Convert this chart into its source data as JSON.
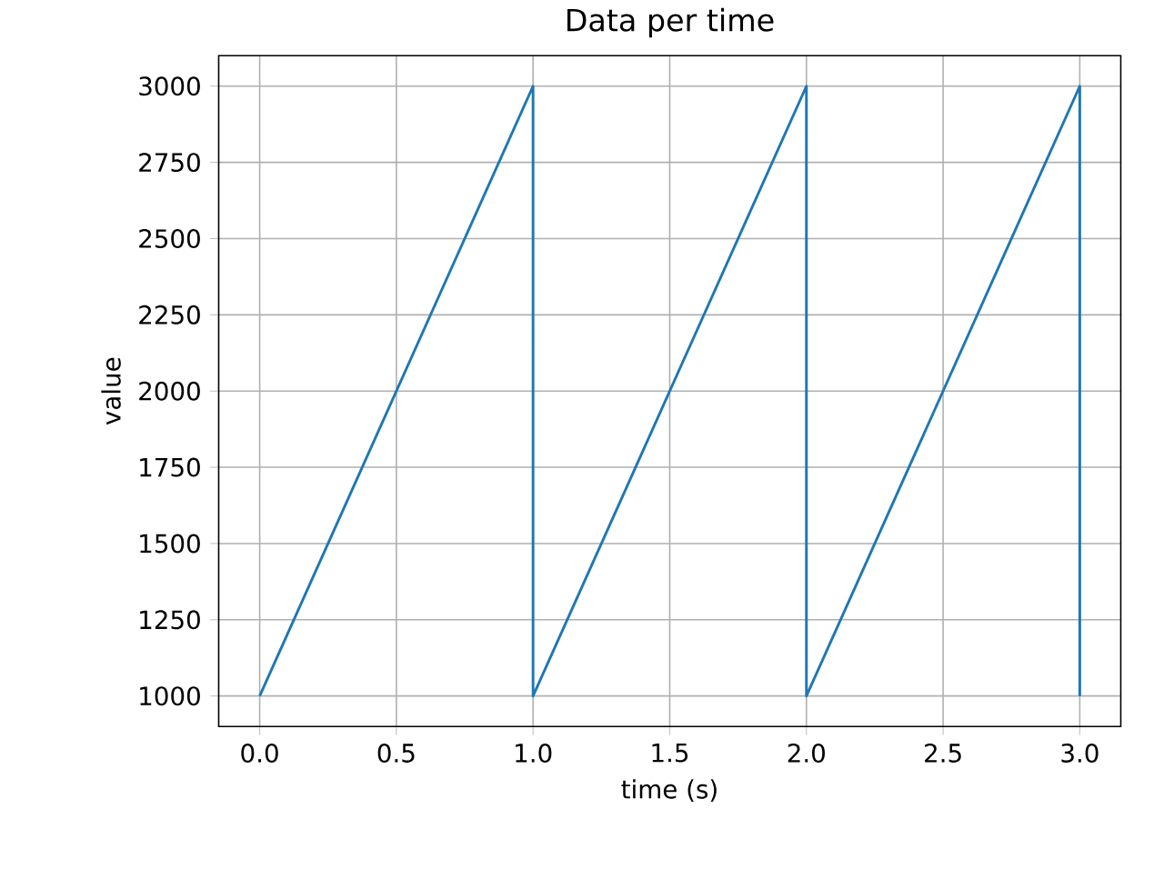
{
  "chart_data": {
    "type": "line",
    "title": "Data per time",
    "xlabel": "time (s)",
    "ylabel": "value",
    "x": [
      0,
      1,
      1,
      2,
      2,
      3,
      3
    ],
    "series": [
      {
        "color": "#1f77b4",
        "values": [
          1000,
          3000,
          1000,
          3000,
          1000,
          3000,
          1000
        ]
      }
    ],
    "xlim": [
      -0.15,
      3.15
    ],
    "ylim": [
      900,
      3100
    ],
    "xticks": [
      {
        "value": 0,
        "label": "0.0"
      },
      {
        "value": 0.5,
        "label": "0.5"
      },
      {
        "value": 1,
        "label": "1.0"
      },
      {
        "value": 1.5,
        "label": "1.5"
      },
      {
        "value": 2,
        "label": "2.0"
      },
      {
        "value": 2.5,
        "label": "2.5"
      },
      {
        "value": 3,
        "label": "3.0"
      }
    ],
    "yticks": [
      1000,
      1250,
      1500,
      1750,
      2000,
      2250,
      2500,
      2750,
      3000
    ],
    "grid": true,
    "marker": "none",
    "line_style": "solid"
  }
}
